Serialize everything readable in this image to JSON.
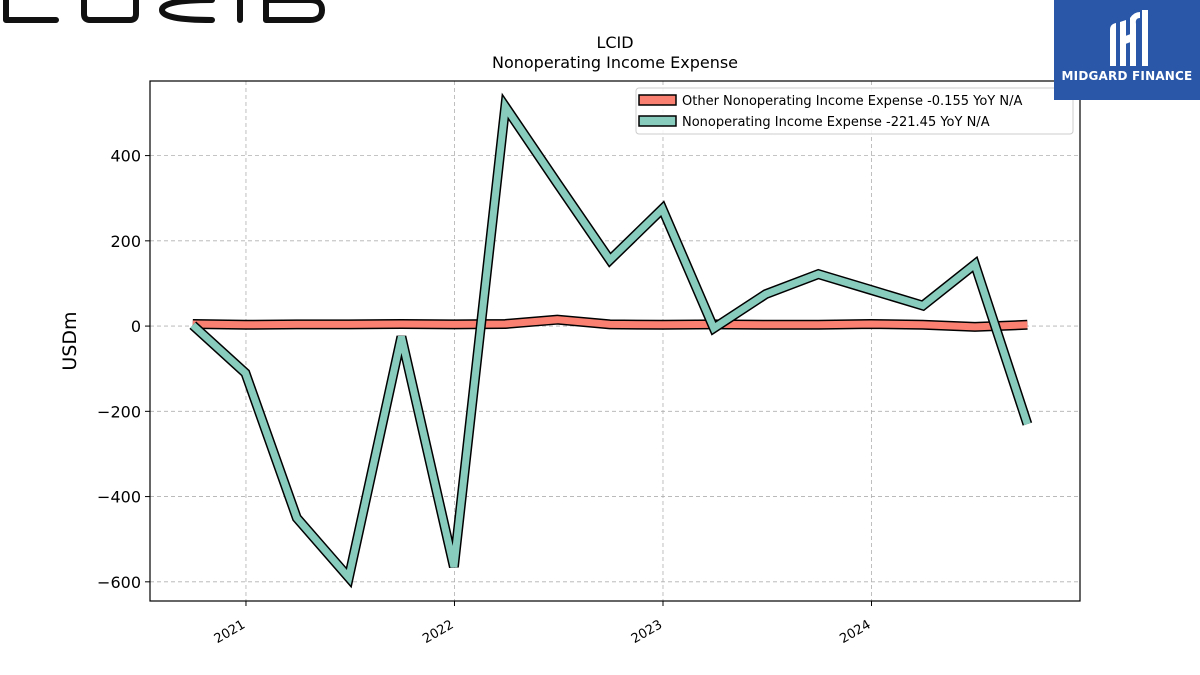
{
  "logo": {
    "text": "LUCID"
  },
  "brand": {
    "name": "MIDGARD FINANCE",
    "color": "#2a57a8"
  },
  "chart_data": {
    "type": "line",
    "title": "LCID",
    "subtitle": "Nonoperating Income Expense",
    "xlabel": "",
    "ylabel": "USDm",
    "xlim": [
      "2020-07-17",
      "2024-12-31"
    ],
    "ylim": [
      -645,
      575
    ],
    "yticks": [
      -600,
      -400,
      -200,
      0,
      200,
      400
    ],
    "ytick_labels": [
      "−600",
      "−400",
      "−200",
      "0",
      "200",
      "400"
    ],
    "xticks": [
      "2021-01-01",
      "2022-01-01",
      "2023-01-01",
      "2024-01-01"
    ],
    "xtick_labels": [
      "2021",
      "2022",
      "2023",
      "2024"
    ],
    "grid": true,
    "legend_position": "top-right",
    "x": [
      "2020-09-30",
      "2020-12-31",
      "2021-03-31",
      "2021-06-30",
      "2021-09-30",
      "2021-12-31",
      "2022-03-31",
      "2022-06-30",
      "2022-09-30",
      "2022-12-31",
      "2023-03-31",
      "2023-06-30",
      "2023-09-30",
      "2023-12-31",
      "2024-03-31",
      "2024-06-30",
      "2024-09-30"
    ],
    "series": [
      {
        "name": "Other Nonoperating Income Expense",
        "legend_label": "Other Nonoperating Income Expense  -0.155 YoY N/A",
        "color": "#fa8072",
        "values": [
          5,
          3,
          4,
          4,
          5,
          4,
          5,
          15,
          4,
          3,
          4,
          3,
          3,
          5,
          3,
          -2,
          3
        ]
      },
      {
        "name": "Nonoperating Income Expense",
        "legend_label": "Nonoperating Income Expense  -221.45 YoY N/A",
        "color": "#88ccbe",
        "values": [
          2,
          -110,
          -450,
          -590,
          -25,
          -565,
          515,
          335,
          155,
          275,
          -5,
          75,
          122,
          85,
          48,
          145,
          -230
        ]
      }
    ]
  }
}
